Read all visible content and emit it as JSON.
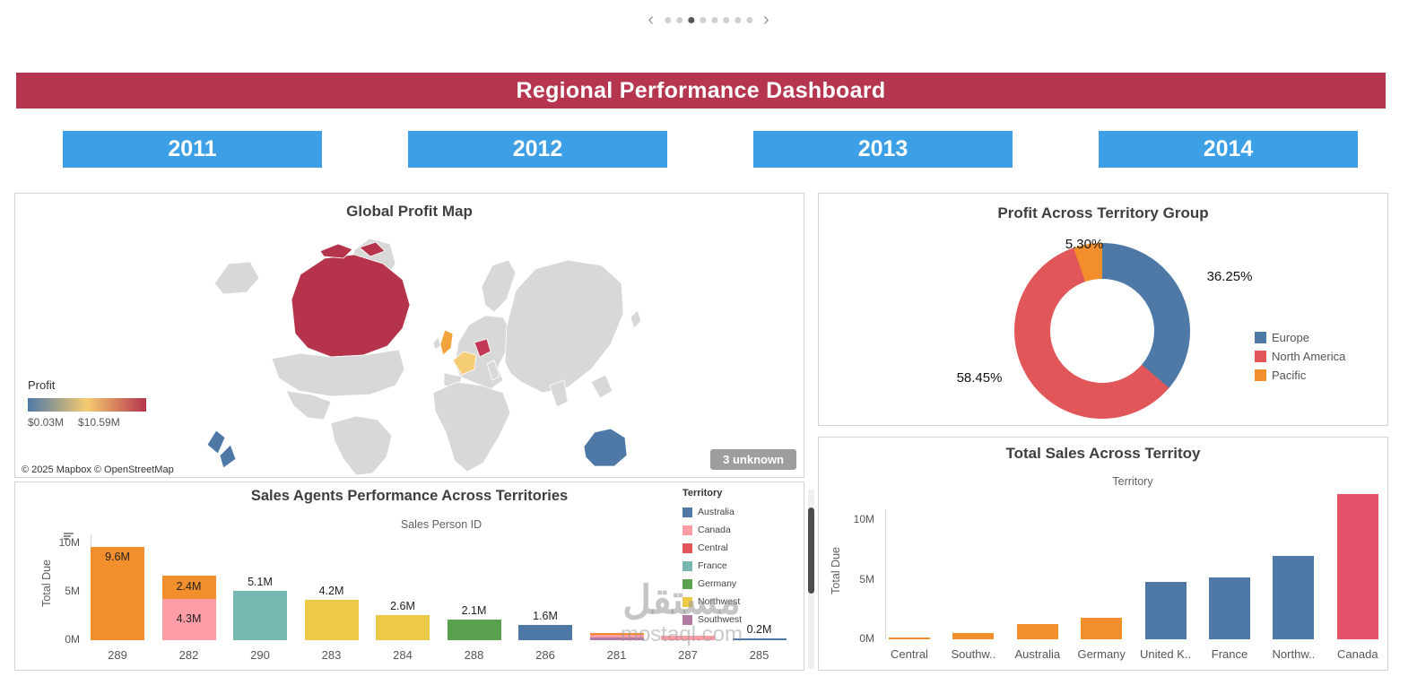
{
  "carousel": {
    "prev": "‹",
    "next": "›",
    "dot_count": 8,
    "active_index": 2
  },
  "header": {
    "title": "Regional Performance Dashboard",
    "bg": "#b5364e"
  },
  "years": [
    "2011",
    "2012",
    "2013",
    "2014"
  ],
  "year_button_color": "#3d9fe6",
  "watermark": {
    "line1": "مستقل",
    "line2": "mostaql.com"
  },
  "chart_data": [
    {
      "id": "profit-donut",
      "type": "pie",
      "donut": true,
      "title": "Profit Across Territory Group",
      "legend_position": "right",
      "slices": [
        {
          "name": "Europe",
          "pct": 36.25,
          "label": "36.25%",
          "color": "#4e79a7"
        },
        {
          "name": "North America",
          "pct": 58.45,
          "label": "58.45%",
          "color": "#e15759"
        },
        {
          "name": "Pacific",
          "pct": 5.3,
          "label": "5.30%",
          "color": "#f28e2b"
        }
      ]
    },
    {
      "id": "sales-agents",
      "type": "bar",
      "stacked": true,
      "title": "Sales Agents Performance Across Territories",
      "x_axis_title": "Sales Person ID",
      "y_axis_title": "Total Due",
      "unit": "M",
      "ylim": [
        0,
        10.8
      ],
      "y_ticks": [
        {
          "label": "10M",
          "value": 10
        },
        {
          "label": "5M",
          "value": 5
        },
        {
          "label": "0M",
          "value": 0
        }
      ],
      "bars": [
        {
          "category": "289",
          "total": 9.6,
          "segments": [
            {
              "value": 9.6,
              "color": "#f28e2b",
              "label": "9.6M",
              "label_pos": "inside-top"
            }
          ]
        },
        {
          "category": "282",
          "total": 6.7,
          "segments": [
            {
              "value": 4.3,
              "color": "#ff9da7",
              "label": "4.3M",
              "label_pos": "inside-center"
            },
            {
              "value": 2.4,
              "color": "#f28e2b",
              "label": "2.4M",
              "label_pos": "inside-center"
            }
          ]
        },
        {
          "category": "290",
          "total": 5.1,
          "segments": [
            {
              "value": 5.1,
              "color": "#76b7b2",
              "label": "5.1M",
              "label_pos": "above"
            }
          ]
        },
        {
          "category": "283",
          "total": 4.2,
          "segments": [
            {
              "value": 4.2,
              "color": "#edc948",
              "label": "4.2M",
              "label_pos": "above"
            }
          ]
        },
        {
          "category": "284",
          "total": 2.6,
          "segments": [
            {
              "value": 2.6,
              "color": "#edc948",
              "label": "2.6M",
              "label_pos": "above"
            }
          ]
        },
        {
          "category": "288",
          "total": 2.1,
          "segments": [
            {
              "value": 2.1,
              "color": "#59a14f",
              "label": "2.1M",
              "label_pos": "above"
            }
          ]
        },
        {
          "category": "286",
          "total": 1.6,
          "segments": [
            {
              "value": 1.6,
              "color": "#4e79a7",
              "label": "1.6M",
              "label_pos": "above"
            }
          ]
        },
        {
          "category": "281",
          "total": 0.7,
          "segments": [
            {
              "value": 0.3,
              "color": "#b07aa1"
            },
            {
              "value": 0.3,
              "color": "#ff9da7"
            },
            {
              "value": 0.1,
              "color": "#f28e2b"
            }
          ]
        },
        {
          "category": "287",
          "total": 0.5,
          "segments": [
            {
              "value": 0.5,
              "color": "#ff9da7"
            }
          ]
        },
        {
          "category": "285",
          "total": 0.2,
          "segments": [
            {
              "value": 0.2,
              "color": "#4e79a7",
              "label": "0.2M",
              "label_pos": "above"
            }
          ]
        }
      ],
      "legend_title": "Territory",
      "legend": [
        {
          "name": "Australia",
          "color": "#4e79a7"
        },
        {
          "name": "Canada",
          "color": "#ff9da7"
        },
        {
          "name": "Central",
          "color": "#e15759"
        },
        {
          "name": "France",
          "color": "#76b7b2"
        },
        {
          "name": "Germany",
          "color": "#59a14f"
        },
        {
          "name": "Northwest",
          "color": "#edc948"
        },
        {
          "name": "Southwest",
          "color": "#b07aa1"
        }
      ]
    },
    {
      "id": "territory-sales",
      "type": "bar",
      "title": "Total Sales Across Territoy",
      "x_axis_title": "Territory",
      "y_axis_title": "Total Due",
      "unit": "M",
      "ylim": [
        0,
        12.6
      ],
      "y_ticks": [
        {
          "label": "10M",
          "value": 10
        },
        {
          "label": "5M",
          "value": 5
        },
        {
          "label": "0M",
          "value": 0
        }
      ],
      "categories": [
        "Central",
        "Southw..",
        "Australia",
        "Germany",
        "United K..",
        "France",
        "Northw..",
        "Canada"
      ],
      "values": [
        0.1,
        0.5,
        1.3,
        1.8,
        4.8,
        5.2,
        7.0,
        12.2
      ],
      "colors": [
        "#f28e2b",
        "#f28e2b",
        "#f28e2b",
        "#f28e2b",
        "#4e79a7",
        "#4e79a7",
        "#4e79a7",
        "#e5536b"
      ]
    },
    {
      "id": "global-profit-map",
      "type": "heatmap",
      "title": "Global Profit  Map",
      "color_scale": {
        "label": "Profit",
        "min": "$0.03M",
        "max": "$10.59M",
        "colors": [
          "#4e79a7",
          "#f5cb71",
          "#b5344c"
        ]
      },
      "highlighted_regions": [
        {
          "name": "Canada",
          "color": "#b5344c"
        },
        {
          "name": "United Kingdom",
          "color": "#f2a33c"
        },
        {
          "name": "Germany",
          "color": "#c23a55"
        },
        {
          "name": "France",
          "color": "#f5cd74"
        },
        {
          "name": "Australia",
          "color": "#4e79a7"
        },
        {
          "name": "New Zealand",
          "color": "#4e79a7"
        }
      ],
      "unknown_note": "3 unknown",
      "attribution": "© 2025 Mapbox © OpenStreetMap"
    }
  ]
}
